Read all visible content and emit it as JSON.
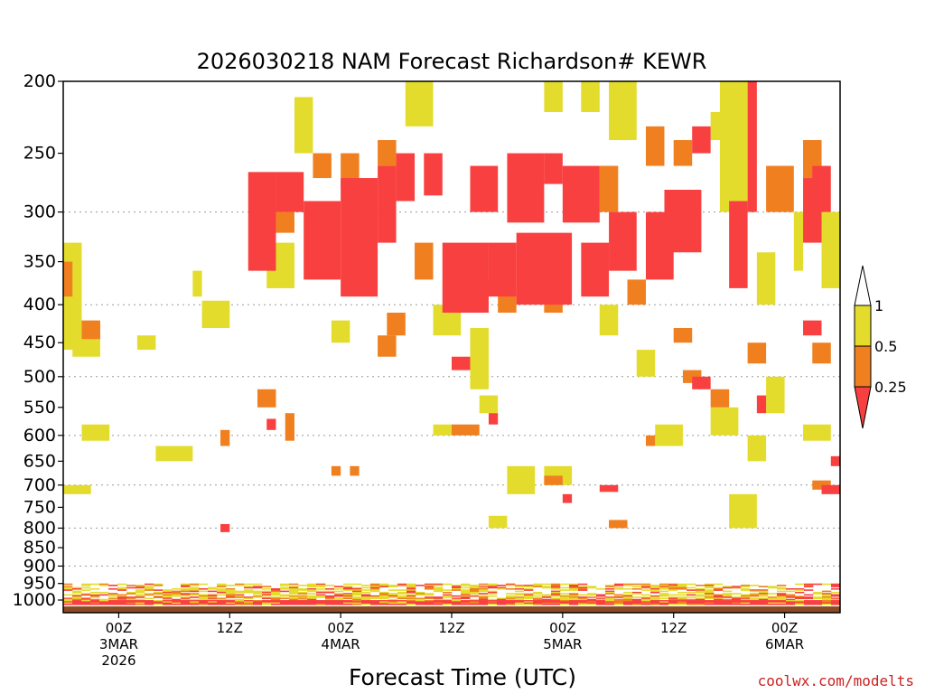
{
  "chart_data": {
    "type": "heatmap",
    "title": "2026030218 NAM Forecast Richardson# KEWR",
    "xlabel": "Forecast Time (UTC)",
    "ylabel": "",
    "credit": "coolwx.com/modelts",
    "y_scale": "log-pressure",
    "ylim": [
      1040,
      200
    ],
    "yticks": [
      200,
      250,
      300,
      350,
      400,
      450,
      500,
      550,
      600,
      650,
      700,
      750,
      800,
      850,
      900,
      950,
      1000
    ],
    "ytick_labels": [
      "200",
      "250",
      "300",
      "350",
      "400",
      "450",
      "500",
      "550",
      "600",
      "650",
      "700",
      "750",
      "800",
      "850",
      "900",
      "950",
      "1000"
    ],
    "gridlines_at": [
      300,
      400,
      500,
      600,
      700,
      800,
      900
    ],
    "x_units": "forecast hours",
    "xlim": [
      0,
      84
    ],
    "xticks": [
      {
        "hour": 6,
        "lines": [
          "00Z",
          "3MAR",
          "2026"
        ]
      },
      {
        "hour": 18,
        "lines": [
          "12Z"
        ]
      },
      {
        "hour": 30,
        "lines": [
          "00Z",
          "4MAR"
        ]
      },
      {
        "hour": 42,
        "lines": [
          "12Z"
        ]
      },
      {
        "hour": 54,
        "lines": [
          "00Z",
          "5MAR"
        ]
      },
      {
        "hour": 66,
        "lines": [
          "12Z"
        ]
      },
      {
        "hour": 78,
        "lines": [
          "00Z",
          "6MAR"
        ]
      }
    ],
    "colorbar": {
      "bins": [
        {
          "range": "< 0.25",
          "color": "#f94040"
        },
        {
          "range": "0.25 - 0.5",
          "color": "#f07f20"
        },
        {
          "range": "0.5 - 1",
          "color": "#e3dc2c"
        },
        {
          "range": "> 1",
          "color": "#ffffff"
        }
      ],
      "tick_labels": [
        "1",
        "0.5",
        "0.25"
      ]
    },
    "colors": {
      "red": "#f94040",
      "orange": "#f07f20",
      "yellow": "#e3dc2c",
      "terrain": "#8b4a22"
    },
    "series_cells": {
      "units": "[hour_start, hour_end, pressure_top_hPa, pressure_bottom_hPa, category]",
      "red": [
        [
          20,
          23,
          265,
          360,
          "r"
        ],
        [
          23,
          26,
          265,
          300,
          "r"
        ],
        [
          26,
          30,
          290,
          370,
          "r"
        ],
        [
          30,
          34,
          270,
          390,
          "r"
        ],
        [
          34,
          36,
          260,
          330,
          "r"
        ],
        [
          36,
          38,
          250,
          290,
          "r"
        ],
        [
          39,
          41,
          250,
          285,
          "r"
        ],
        [
          41,
          46,
          330,
          410,
          "r"
        ],
        [
          44,
          47,
          260,
          300,
          "r"
        ],
        [
          46,
          49,
          330,
          390,
          "r"
        ],
        [
          48,
          52,
          250,
          310,
          "r"
        ],
        [
          49,
          55,
          320,
          400,
          "r"
        ],
        [
          52,
          54,
          250,
          275,
          "r"
        ],
        [
          54,
          58,
          260,
          310,
          "r"
        ],
        [
          56,
          59,
          330,
          390,
          "r"
        ],
        [
          59,
          62,
          300,
          360,
          "r"
        ],
        [
          63,
          66,
          300,
          370,
          "r"
        ],
        [
          65,
          69,
          280,
          340,
          "r"
        ],
        [
          68,
          70,
          230,
          250,
          "r"
        ],
        [
          72,
          74,
          290,
          380,
          "r"
        ],
        [
          80,
          82,
          270,
          330,
          "r"
        ],
        [
          81,
          83,
          260,
          300,
          "r"
        ],
        [
          74,
          75,
          200,
          300,
          "r"
        ],
        [
          42,
          44,
          470,
          490,
          "r"
        ],
        [
          46,
          47,
          560,
          580,
          "r"
        ],
        [
          75,
          76,
          530,
          560,
          "r"
        ],
        [
          68,
          70,
          500,
          520,
          "r"
        ],
        [
          17,
          18,
          790,
          810,
          "r"
        ],
        [
          22,
          23,
          570,
          590,
          "r"
        ],
        [
          54,
          55,
          720,
          740,
          "r"
        ],
        [
          58,
          60,
          700,
          715,
          "r"
        ],
        [
          82,
          84,
          700,
          720,
          "r"
        ],
        [
          80,
          82,
          420,
          440,
          "r"
        ],
        [
          83,
          84,
          640,
          660,
          "r"
        ]
      ],
      "orange": [
        [
          0,
          1,
          350,
          390,
          "o"
        ],
        [
          2,
          4,
          420,
          445,
          "o"
        ],
        [
          23,
          25,
          300,
          320,
          "o"
        ],
        [
          27,
          29,
          250,
          270,
          "o"
        ],
        [
          30,
          32,
          250,
          280,
          "o"
        ],
        [
          34,
          36,
          240,
          260,
          "o"
        ],
        [
          38,
          40,
          330,
          370,
          "o"
        ],
        [
          44,
          46,
          370,
          400,
          "o"
        ],
        [
          47,
          49,
          380,
          410,
          "o"
        ],
        [
          50,
          52,
          350,
          370,
          "o"
        ],
        [
          52,
          54,
          385,
          410,
          "o"
        ],
        [
          58,
          60,
          260,
          300,
          "o"
        ],
        [
          61,
          63,
          370,
          400,
          "o"
        ],
        [
          63,
          65,
          230,
          260,
          "o"
        ],
        [
          66,
          68,
          240,
          260,
          "o"
        ],
        [
          76,
          79,
          260,
          300,
          "o"
        ],
        [
          80,
          82,
          240,
          270,
          "o"
        ],
        [
          34,
          36,
          440,
          470,
          "o"
        ],
        [
          35,
          37,
          410,
          440,
          "o"
        ],
        [
          42,
          45,
          580,
          600,
          "o"
        ],
        [
          21,
          23,
          520,
          550,
          "o"
        ],
        [
          24,
          25,
          560,
          610,
          "o"
        ],
        [
          67,
          69,
          490,
          510,
          "o"
        ],
        [
          66,
          68,
          430,
          450,
          "o"
        ],
        [
          70,
          72,
          520,
          550,
          "o"
        ],
        [
          74,
          76,
          450,
          480,
          "o"
        ],
        [
          81,
          83,
          450,
          480,
          "o"
        ],
        [
          17,
          18,
          590,
          620,
          "o"
        ],
        [
          29,
          30,
          660,
          680,
          "o"
        ],
        [
          31,
          32,
          660,
          680,
          "o"
        ],
        [
          59,
          61,
          780,
          800,
          "o"
        ],
        [
          81,
          83,
          690,
          710,
          "o"
        ],
        [
          63,
          64,
          600,
          620,
          "o"
        ],
        [
          52,
          54,
          680,
          700,
          "o"
        ]
      ],
      "yellow": [
        [
          0,
          2,
          330,
          460,
          "y"
        ],
        [
          2,
          5,
          580,
          610,
          "y"
        ],
        [
          0,
          3,
          700,
          720,
          "y"
        ],
        [
          10,
          14,
          620,
          650,
          "y"
        ],
        [
          14,
          15,
          360,
          390,
          "y"
        ],
        [
          15,
          18,
          395,
          430,
          "y"
        ],
        [
          22,
          25,
          330,
          380,
          "y"
        ],
        [
          25,
          27,
          210,
          250,
          "y"
        ],
        [
          29,
          31,
          420,
          450,
          "y"
        ],
        [
          37,
          40,
          200,
          230,
          "y"
        ],
        [
          40,
          43,
          400,
          440,
          "y"
        ],
        [
          44,
          46,
          430,
          520,
          "y"
        ],
        [
          52,
          54,
          200,
          220,
          "y"
        ],
        [
          56,
          58,
          200,
          220,
          "y"
        ],
        [
          59,
          62,
          200,
          240,
          "y"
        ],
        [
          70,
          72,
          220,
          240,
          "y"
        ],
        [
          75,
          77,
          340,
          400,
          "y"
        ],
        [
          79,
          80,
          300,
          360,
          "y"
        ],
        [
          82,
          84,
          300,
          380,
          "y"
        ],
        [
          71,
          74,
          200,
          300,
          "y"
        ],
        [
          48,
          51,
          660,
          720,
          "y"
        ],
        [
          52,
          55,
          660,
          700,
          "y"
        ],
        [
          64,
          67,
          580,
          620,
          "y"
        ],
        [
          70,
          73,
          550,
          600,
          "y"
        ],
        [
          74,
          76,
          600,
          650,
          "y"
        ],
        [
          76,
          78,
          500,
          560,
          "y"
        ],
        [
          80,
          83,
          580,
          610,
          "y"
        ],
        [
          72,
          75,
          720,
          800,
          "y"
        ],
        [
          46,
          48,
          770,
          800,
          "y"
        ],
        [
          8,
          10,
          440,
          460,
          "y"
        ],
        [
          1,
          4,
          440,
          470,
          "y"
        ],
        [
          40,
          42,
          580,
          600,
          "y"
        ],
        [
          58,
          60,
          400,
          440,
          "y"
        ],
        [
          62,
          64,
          460,
          500,
          "y"
        ],
        [
          45,
          47,
          530,
          560,
          "y"
        ]
      ],
      "boundary_layer": [
        [
          0,
          84,
          950,
          1015,
          "mixed"
        ]
      ]
    },
    "terrain_pressure_top": 1020
  }
}
